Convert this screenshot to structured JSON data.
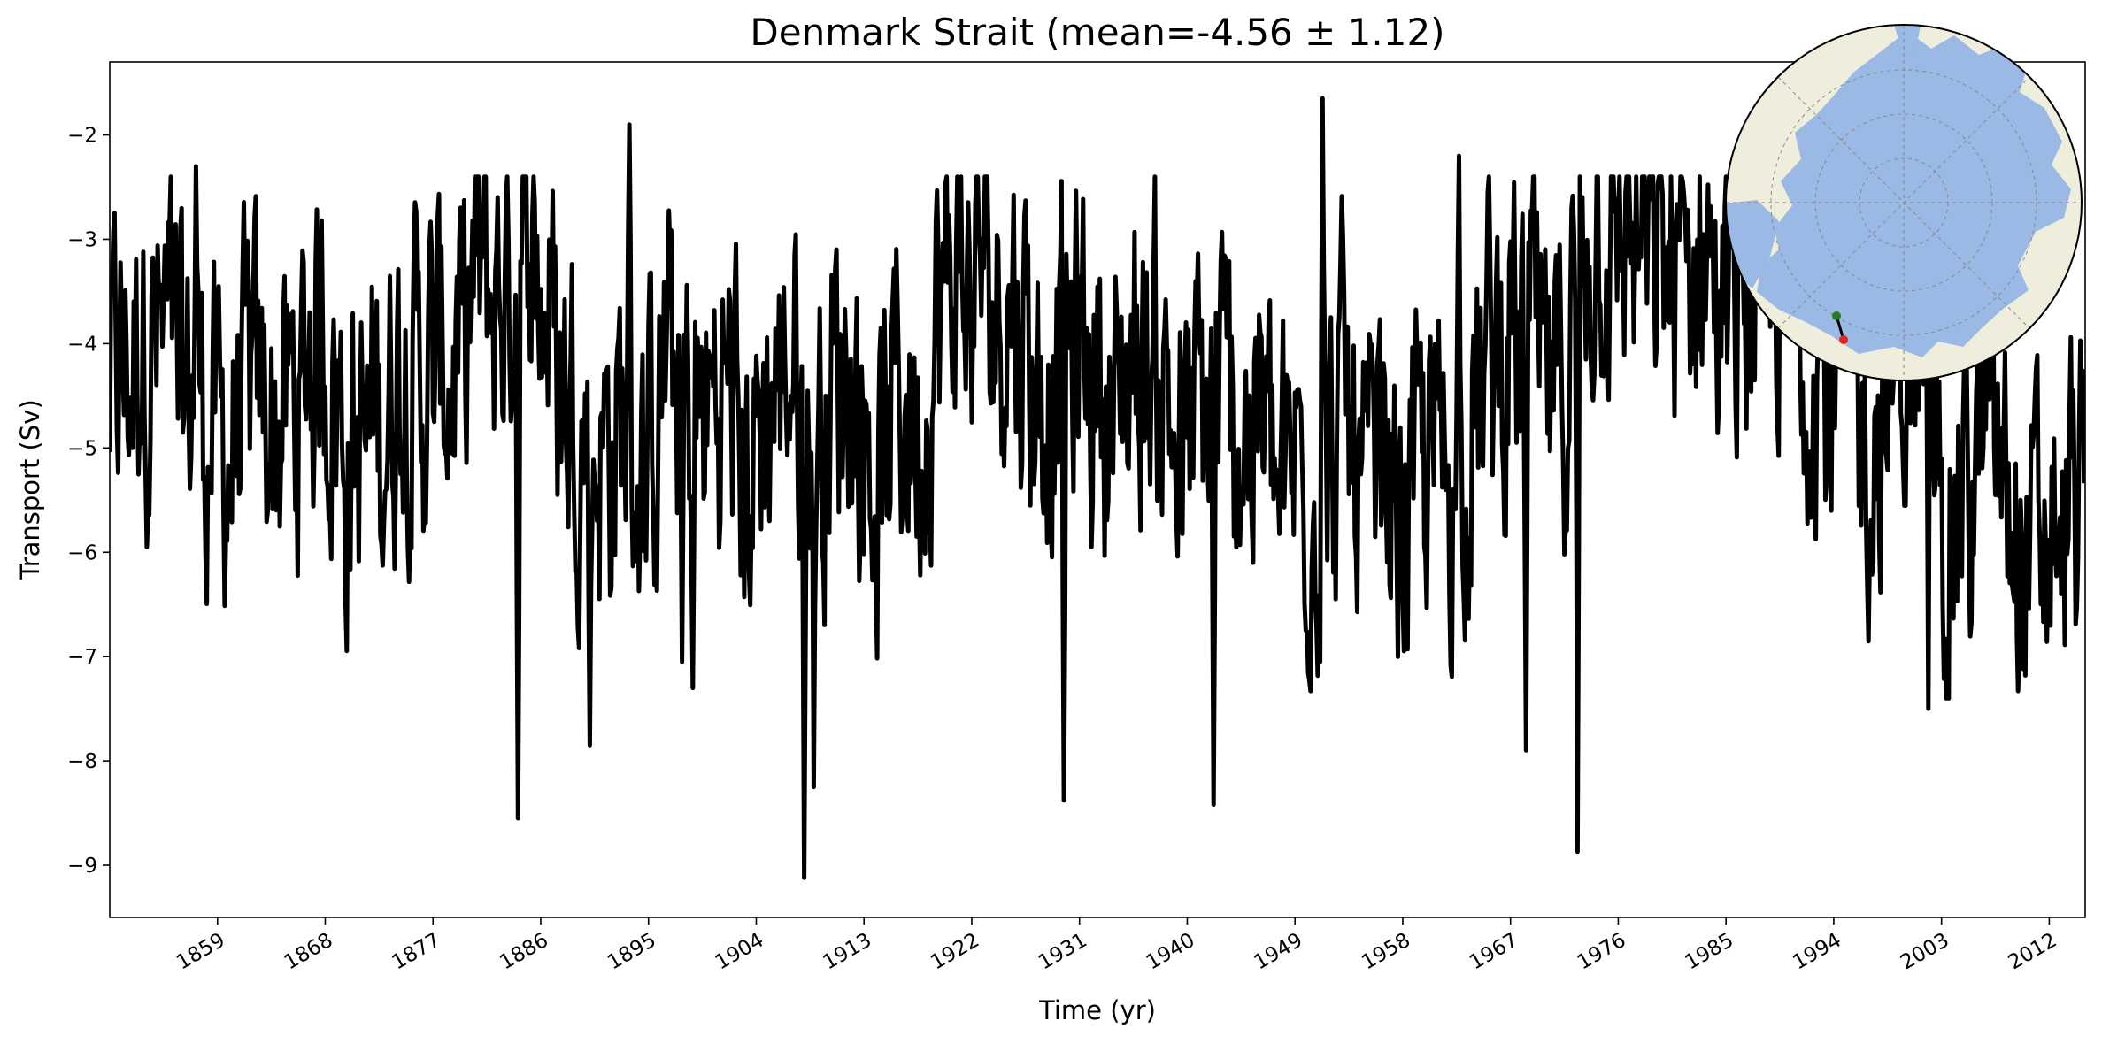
{
  "chart_data": {
    "type": "line",
    "title": "Denmark Strait (mean=-4.56 ± 1.12)",
    "xlabel": "Time (yr)",
    "ylabel": "Transport (Sv)",
    "xlim": [
      1850,
      2015
    ],
    "ylim": [
      -9.5,
      -1.3
    ],
    "x_ticks": [
      1859,
      1868,
      1877,
      1886,
      1895,
      1904,
      1913,
      1922,
      1931,
      1940,
      1949,
      1958,
      1967,
      1976,
      1985,
      1994,
      2003,
      2012
    ],
    "y_ticks": [
      -2,
      -3,
      -4,
      -5,
      -6,
      -7,
      -8,
      -9
    ],
    "y_tick_labels": [
      "−2",
      "−3",
      "−4",
      "−5",
      "−6",
      "−7",
      "−8",
      "−9"
    ],
    "grid": false,
    "series": [
      {
        "color": "#000000",
        "x_start": 1850.0,
        "x_end": 2014.9,
        "x_step": 0.1,
        "mean": -4.56,
        "std": 1.12,
        "values_note_omitted": "",
        "key_points": [
          {
            "x": 1857.2,
            "y": -2.3
          },
          {
            "x": 1884.1,
            "y": -8.55
          },
          {
            "x": 1890.1,
            "y": -7.85
          },
          {
            "x": 1893.4,
            "y": -1.9
          },
          {
            "x": 1897.8,
            "y": -7.05
          },
          {
            "x": 1898.7,
            "y": -7.3
          },
          {
            "x": 1908.0,
            "y": -9.12
          },
          {
            "x": 1908.8,
            "y": -8.25
          },
          {
            "x": 1929.7,
            "y": -8.38
          },
          {
            "x": 1942.2,
            "y": -8.42
          },
          {
            "x": 1951.3,
            "y": -1.65
          },
          {
            "x": 1962.7,
            "y": -2.2
          },
          {
            "x": 1968.3,
            "y": -7.9
          },
          {
            "x": 1972.6,
            "y": -8.87
          },
          {
            "x": 2001.9,
            "y": -7.5
          },
          {
            "x": 2013.0,
            "y": -6.4
          }
        ]
      }
    ],
    "inset": {
      "type": "polar-map",
      "ocean_color": "#9ab9e4",
      "land_color": "#efeedd",
      "section_start_color": "#2a7a1a",
      "section_end_color": "#e8231c"
    }
  }
}
